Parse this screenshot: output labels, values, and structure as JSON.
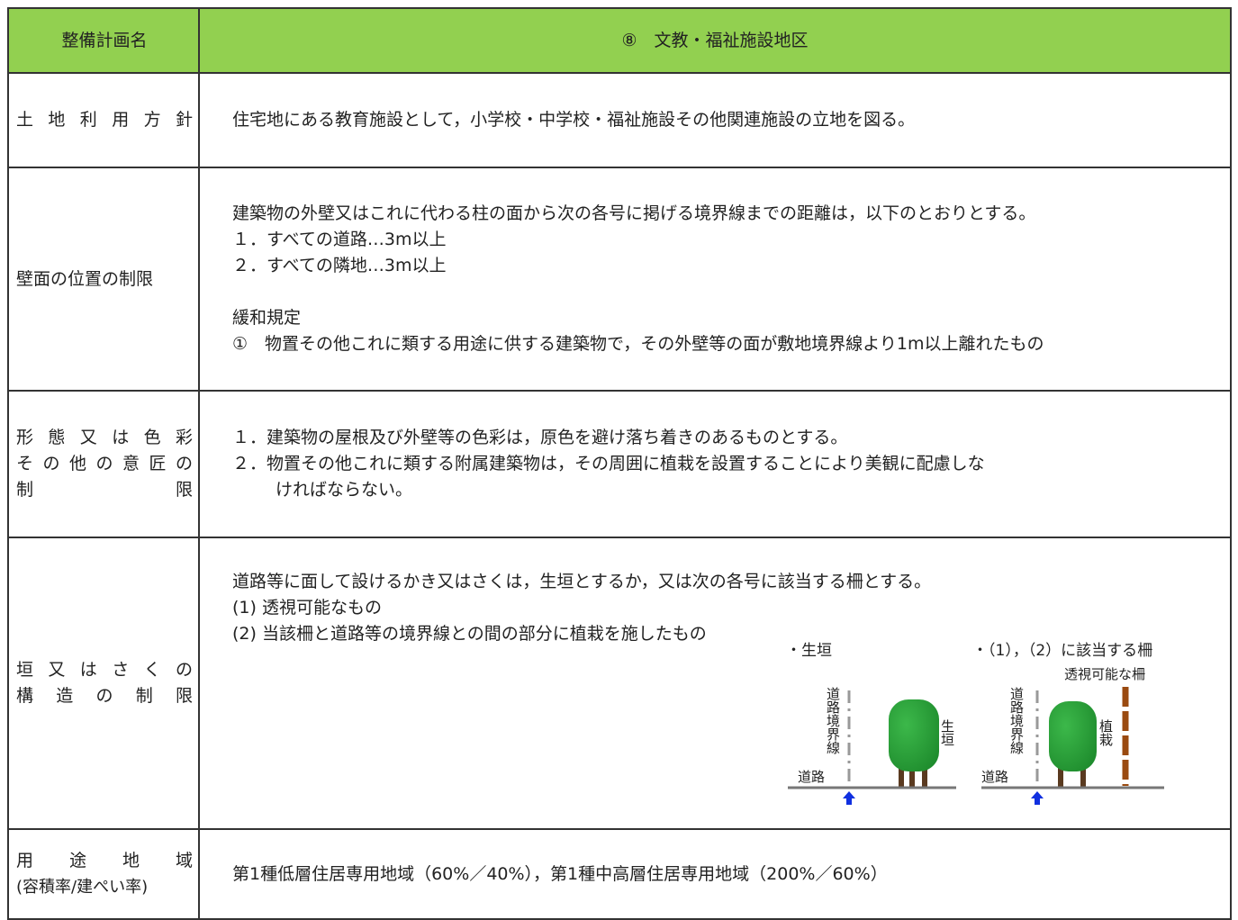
{
  "header": {
    "label": "整備計画名",
    "title": "⑧　文教・福祉施設地区"
  },
  "rows": [
    {
      "label": [
        "土地利用方針"
      ],
      "content": [
        "住宅地にある教育施設として，小学校・中学校・福祉施設その他関連施設の立地を図る。"
      ]
    },
    {
      "label": [
        "壁面の位置の制限"
      ],
      "content": [
        "建築物の外壁又はこれに代わる柱の面から次の各号に掲げる境界線までの距離は，以下のとおりとする。",
        "１．すべての道路…3m以上",
        "２．すべての隣地…3m以上",
        "緩和規定",
        "①　物置その他これに類する用途に供する建築物で，その外壁等の面が敷地境界線より1m以上離れたもの"
      ]
    },
    {
      "label": [
        "形態又は色彩",
        "その他の意匠の",
        "制限"
      ],
      "content": [
        "１．建築物の屋根及び外壁等の色彩は，原色を避け落ち着きのあるものとする。",
        "２．物置その他これに類する附属建築物は，その周囲に植栽を設置することにより美観に配慮しな",
        "ければならない。"
      ]
    },
    {
      "label": [
        "垣又はさくの",
        "構造の制限"
      ],
      "content": [
        "道路等に面して設けるかき又はさくは，生垣とするか，又は次の各号に該当する柵とする。",
        "(1) 透視可能なもの",
        "(2) 当該柵と道路等の境界線との間の部分に植栽を施したもの"
      ],
      "figures": {
        "hedge": {
          "title": "・生垣",
          "boundary": "道路境界線",
          "plant": "生垣",
          "road": "道路"
        },
        "fence": {
          "title": "・（1），（2）に該当する柵",
          "fence_label": "透視可能な柵",
          "boundary": "道路境界線",
          "plant": "植栽",
          "road": "道路"
        }
      }
    },
    {
      "label": [
        "用途地域",
        "(容積率/建ぺい率)"
      ],
      "content": [
        "第1種低層住居専用地域（60%／40%），第1種中高層住居専用地域（200%／60%）"
      ]
    }
  ]
}
